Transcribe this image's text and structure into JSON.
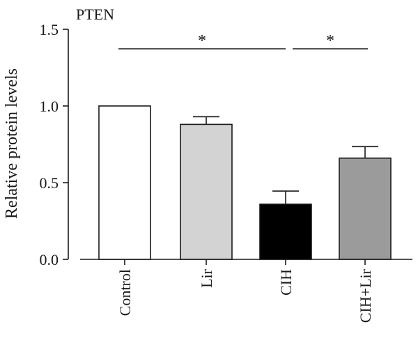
{
  "chart_data": {
    "type": "bar",
    "title": "PTEN",
    "ylabel": "Relative protein levels",
    "xlabel": "",
    "ylim": [
      0,
      1.5
    ],
    "yticks": [
      0.0,
      0.5,
      1.0,
      1.5
    ],
    "ytick_labels": [
      "0.0",
      "0.5",
      "1.0",
      "1.5"
    ],
    "categories": [
      "Control",
      "Lir",
      "CIH",
      "CIH+Lir"
    ],
    "values": [
      1.0,
      0.88,
      0.36,
      0.66
    ],
    "errors": [
      0,
      0.05,
      0.085,
      0.075
    ],
    "bar_colors": [
      "#ffffff",
      "#d3d3d3",
      "#000000",
      "#9b9b9b"
    ],
    "significance": [
      {
        "from": "Control",
        "to": "CIH",
        "label": "*"
      },
      {
        "from": "CIH",
        "to": "CIH+Lir",
        "label": "*"
      }
    ]
  }
}
